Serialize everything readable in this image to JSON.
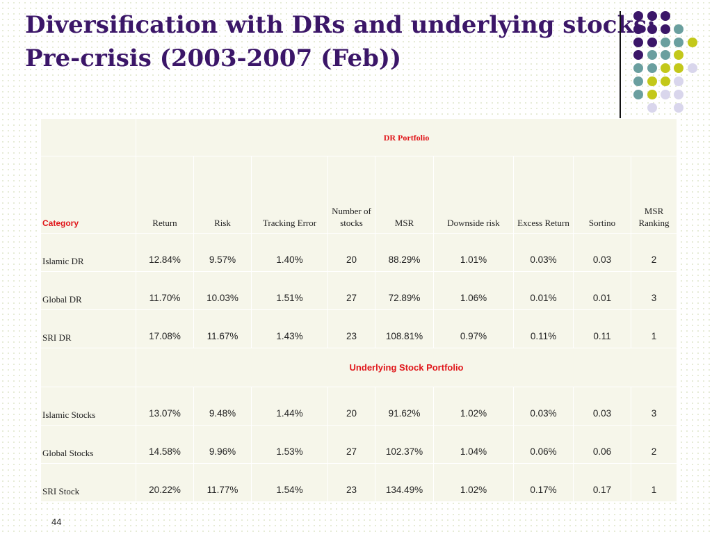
{
  "slide": {
    "title_line1": "Diversification with DRs and underlying stocks:",
    "title_line2": "Pre-crisis (2003-2007 (Feb))",
    "page_number": "44"
  },
  "decoration": {
    "dot_colors": {
      "purple": "#3b1668",
      "teal": "#6a9f9f",
      "olive": "#c3c81a",
      "lavender": "#d9d6ec"
    }
  },
  "table": {
    "section_dr": "DR Portfolio",
    "section_stock": "Underlying Stock Portfolio",
    "headers": {
      "category": "Category",
      "return": "Return",
      "risk": "Risk",
      "tracking_error": "Tracking Error",
      "num_stocks_line1": "Number of",
      "num_stocks_line2": "stocks",
      "msr": "MSR",
      "downside_risk": "Downside risk",
      "excess_return": "Excess Return",
      "sortino": "Sortino",
      "msr_ranking_line1": "MSR",
      "msr_ranking_line2": "Ranking"
    },
    "dr_rows": [
      {
        "category": "Islamic DR",
        "return": "12.84%",
        "risk": "9.57%",
        "tracking_error": "1.40%",
        "num_stocks": "20",
        "msr": "88.29%",
        "downside_risk": "1.01%",
        "excess_return": "0.03%",
        "sortino": "0.03",
        "msr_ranking": "2"
      },
      {
        "category": "Global DR",
        "return": "11.70%",
        "risk": "10.03%",
        "tracking_error": "1.51%",
        "num_stocks": "27",
        "msr": "72.89%",
        "downside_risk": "1.06%",
        "excess_return": "0.01%",
        "sortino": "0.01",
        "msr_ranking": "3"
      },
      {
        "category": "SRI DR",
        "return": "17.08%",
        "risk": "11.67%",
        "tracking_error": "1.43%",
        "num_stocks": "23",
        "msr": "108.81%",
        "downside_risk": "0.97%",
        "excess_return": "0.11%",
        "sortino": "0.11",
        "msr_ranking": "1"
      }
    ],
    "stock_rows": [
      {
        "category": "Islamic Stocks",
        "return": "13.07%",
        "risk": "9.48%",
        "tracking_error": "1.44%",
        "num_stocks": "20",
        "msr": "91.62%",
        "downside_risk": "1.02%",
        "excess_return": "0.03%",
        "sortino": "0.03",
        "msr_ranking": "3"
      },
      {
        "category": "Global Stocks",
        "return": "14.58%",
        "risk": "9.96%",
        "tracking_error": "1.53%",
        "num_stocks": "27",
        "msr": "102.37%",
        "downside_risk": "1.04%",
        "excess_return": "0.06%",
        "sortino": "0.06",
        "msr_ranking": "2"
      },
      {
        "category": "SRI Stock",
        "return": "20.22%",
        "risk": "11.77%",
        "tracking_error": "1.54%",
        "num_stocks": "23",
        "msr": "134.49%",
        "downside_risk": "1.02%",
        "excess_return": "0.17%",
        "sortino": "0.17",
        "msr_ranking": "1"
      }
    ]
  }
}
